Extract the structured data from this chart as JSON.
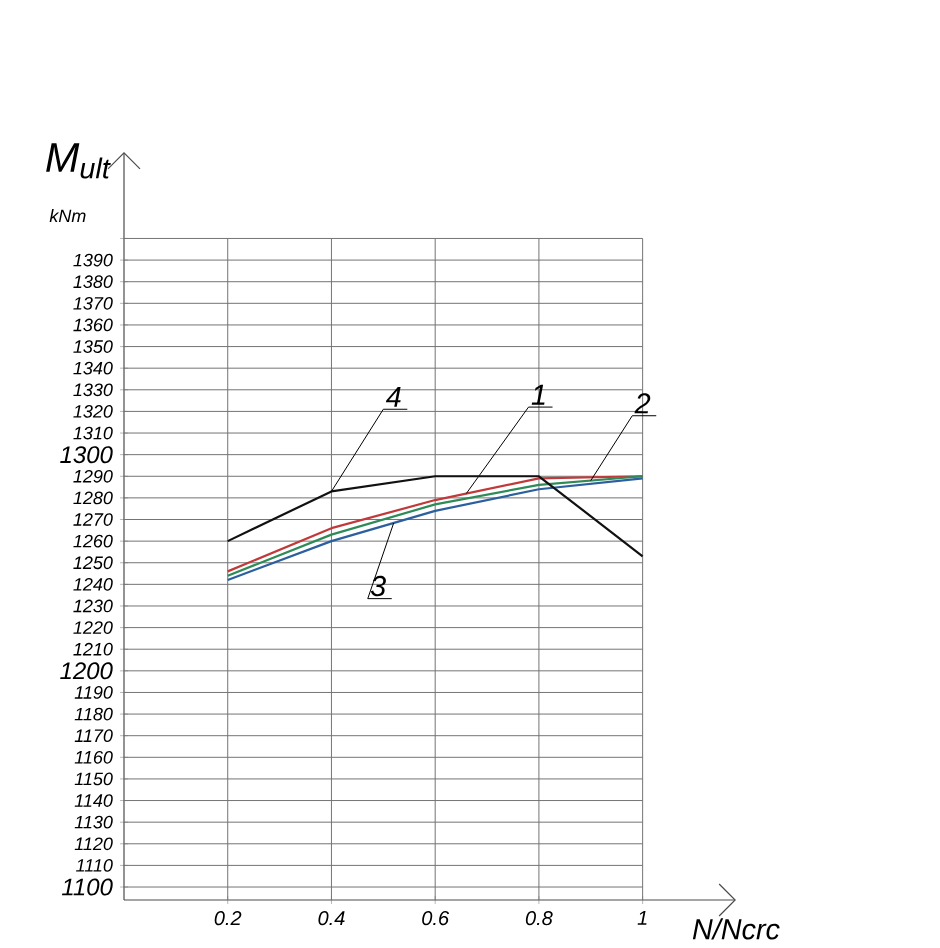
{
  "chart_data": {
    "type": "line",
    "xlabel": "N/Ncrc",
    "ylabel": "M$_{ult}$",
    "annotations": [
      "kNm"
    ],
    "x": [
      0.2,
      0.4,
      0.6,
      0.8,
      1
    ],
    "series": [
      {
        "name": "1",
        "color": "#c0393b",
        "values": [
          1246,
          1266,
          1279,
          1289,
          1290
        ]
      },
      {
        "name": "2",
        "color": "#2e8b57",
        "values": [
          1244,
          1263,
          1277,
          1286,
          1290
        ]
      },
      {
        "name": "3",
        "color": "#2b5f9e",
        "values": [
          1242,
          1260,
          1274,
          1284,
          1289
        ]
      },
      {
        "name": "4",
        "color": "#111111",
        "values": [
          1260,
          1283,
          1290,
          1290,
          1253
        ]
      }
    ],
    "xlim": [
      0,
      1.18
    ],
    "xticks": [
      0.2,
      0.4,
      0.6,
      0.8,
      1
    ],
    "ylim": [
      1094,
      1440
    ],
    "yticks": [
      1100,
      1110,
      1120,
      1130,
      1140,
      1150,
      1160,
      1170,
      1180,
      1190,
      1200,
      1210,
      1220,
      1230,
      1240,
      1250,
      1260,
      1270,
      1280,
      1290,
      1300,
      1310,
      1320,
      1330,
      1340,
      1350,
      1360,
      1370,
      1380,
      1390,
      {
        "value": 1400,
        "label": null
      }
    ],
    "grid": true,
    "legend": false,
    "marker": "none",
    "line_style": "solid"
  }
}
